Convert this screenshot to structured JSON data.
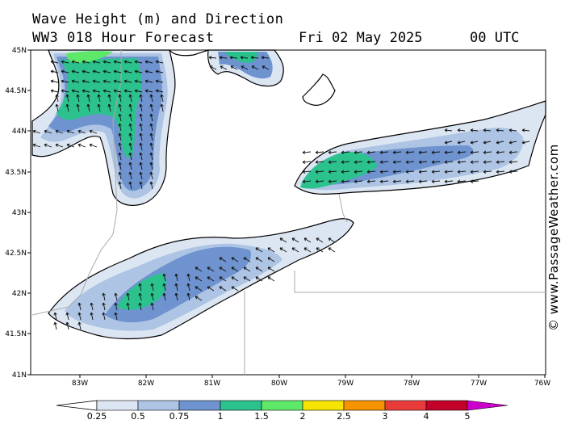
{
  "header": {
    "title_line1": "Wave Height (m) and Direction",
    "title_line2": "WW3 018 Hour Forecast",
    "date": "Fri 02 May 2025",
    "time": "00 UTC"
  },
  "credit": "© www.PassageWeather.com",
  "axes": {
    "lat_labels": [
      "45N",
      "44.5N",
      "44N",
      "43.5N",
      "43N",
      "42.5N",
      "42N",
      "41.5N",
      "41N"
    ],
    "lon_labels": [
      "83W",
      "82W",
      "81W",
      "80W",
      "79W",
      "78W",
      "77W",
      "76W"
    ]
  },
  "legend": {
    "labels": [
      "0.25",
      "0.5",
      "0.75",
      "1",
      "1.5",
      "2",
      "2.5",
      "3",
      "4",
      "5"
    ],
    "colors": [
      "#dce6f2",
      "#aec4e4",
      "#6e93cf",
      "#2cc28d",
      "#5ee86a",
      "#f5e300",
      "#f59300",
      "#ea3b3b",
      "#c3002a",
      "#cc00cc"
    ]
  },
  "colors": {
    "land": "#ffffff",
    "coast": "#000000",
    "border": "#aaaaaa",
    "arrow": "#111111"
  }
}
